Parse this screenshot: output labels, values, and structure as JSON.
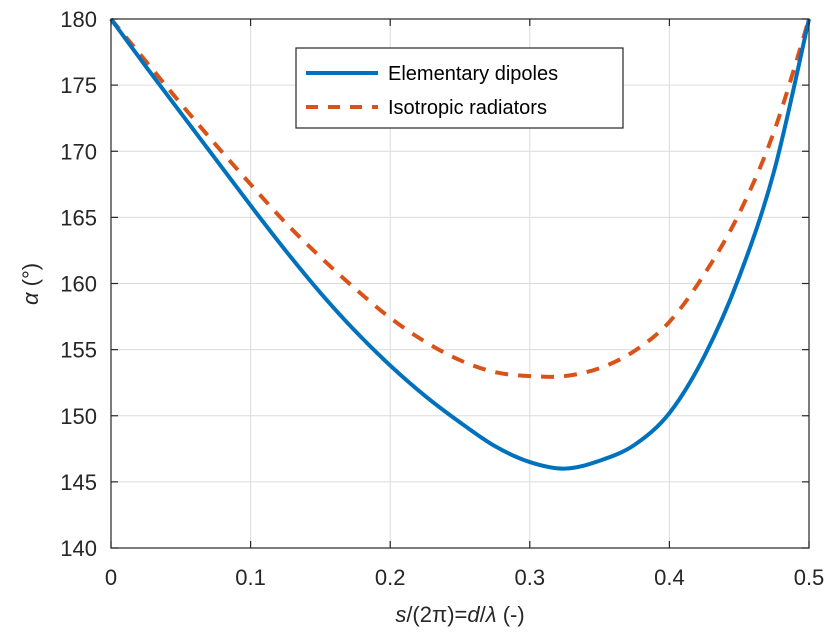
{
  "chart_data": {
    "type": "line",
    "xlim": [
      0,
      0.5
    ],
    "ylim": [
      140,
      180
    ],
    "grid": true,
    "legend_location": "top-center",
    "xticks": [
      "0",
      "0.1",
      "0.2",
      "0.3",
      "0.4",
      "0.5"
    ],
    "yticks": [
      "140",
      "145",
      "150",
      "155",
      "160",
      "165",
      "170",
      "175",
      "180"
    ],
    "xlabel": {
      "italic_a": "s",
      "part_b": "/(2",
      "symbol_pi": "π",
      "part_c": ")=",
      "italic_d": "d",
      "part_e": "/",
      "symbol_lambda": "λ",
      "part_f": " (-)"
    },
    "ylabel": {
      "symbol_alpha": "α",
      "unit": " (°)"
    },
    "series": [
      {
        "name": "Elementary dipoles",
        "color": "#0072BD",
        "style": "solid",
        "x": [
          0,
          0.025,
          0.05,
          0.075,
          0.1,
          0.125,
          0.15,
          0.175,
          0.2,
          0.225,
          0.25,
          0.275,
          0.3,
          0.325,
          0.35,
          0.375,
          0.4,
          0.425,
          0.45,
          0.475,
          0.5
        ],
        "y": [
          180,
          176.4,
          172.9,
          169.4,
          165.9,
          162.5,
          159.3,
          156.4,
          153.8,
          151.5,
          149.5,
          147.7,
          146.5,
          146.0,
          146.6,
          147.8,
          150.2,
          154.5,
          160.5,
          168.5,
          180
        ]
      },
      {
        "name": "Isotropic radiators",
        "color": "#D95319",
        "style": "dashed",
        "x": [
          0,
          0.025,
          0.05,
          0.075,
          0.1,
          0.125,
          0.15,
          0.175,
          0.2,
          0.225,
          0.25,
          0.275,
          0.3,
          0.325,
          0.35,
          0.375,
          0.4,
          0.425,
          0.45,
          0.475,
          0.5
        ],
        "y": [
          180,
          176.8,
          173.6,
          170.5,
          167.5,
          164.6,
          162.0,
          159.6,
          157.4,
          155.6,
          154.2,
          153.3,
          153.0,
          153.0,
          153.6,
          154.9,
          157.1,
          160.7,
          165.3,
          171.5,
          180
        ]
      }
    ]
  }
}
